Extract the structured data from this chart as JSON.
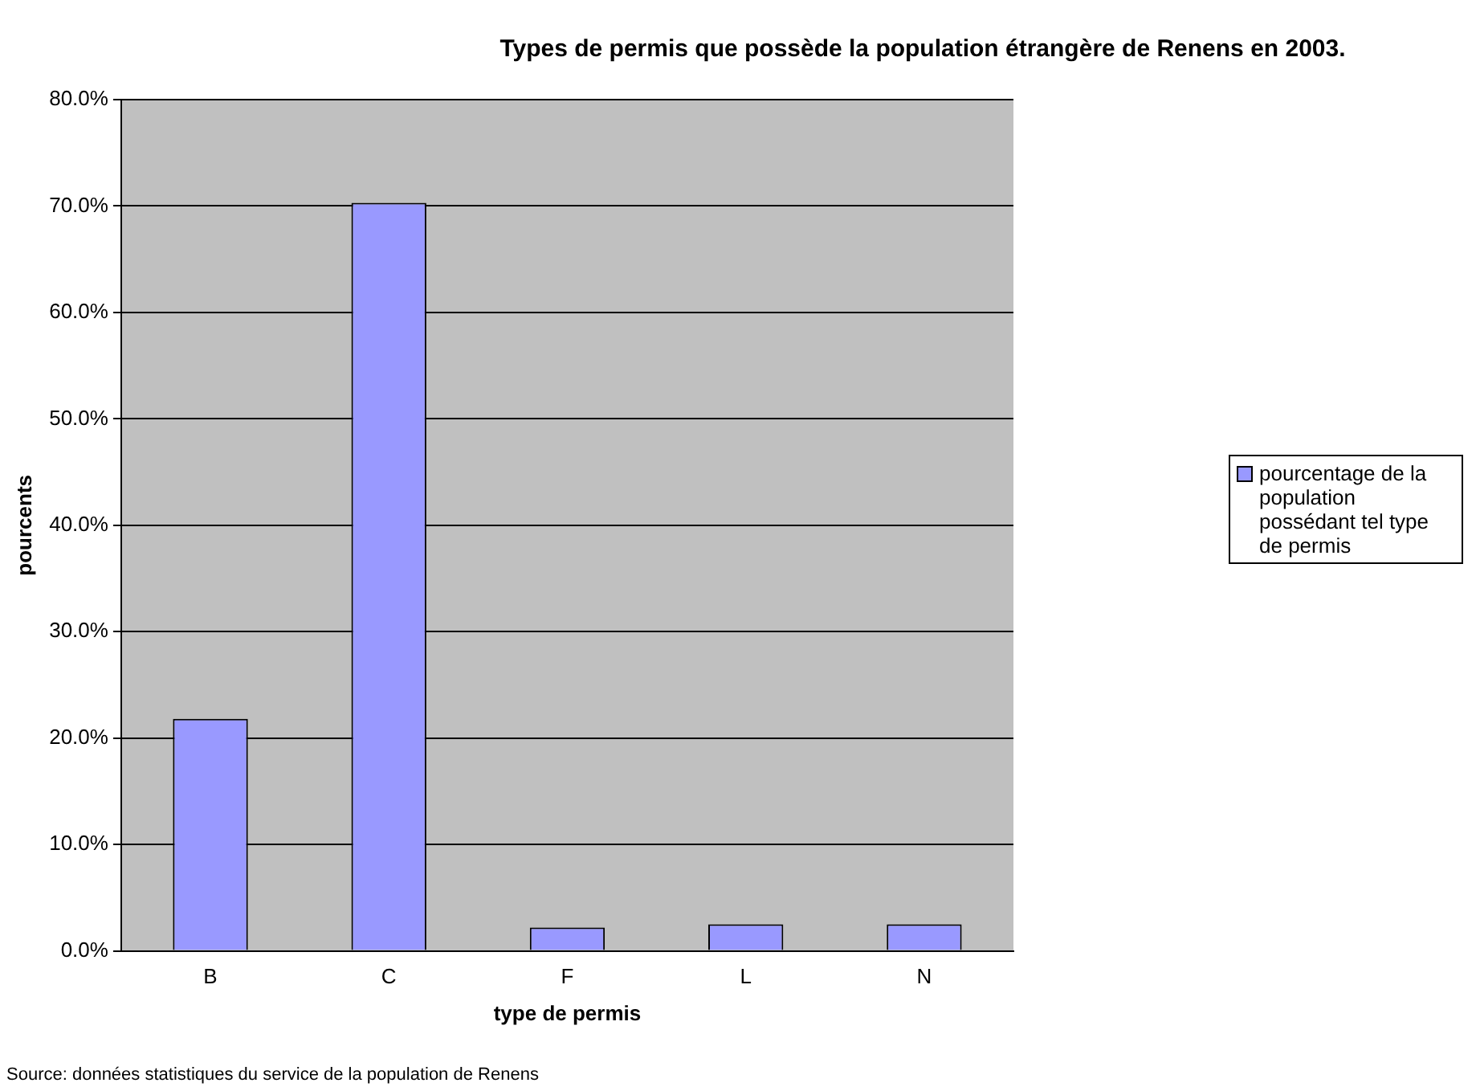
{
  "chart_data": {
    "type": "bar",
    "title": "Types de permis que possède la population étrangère de Renens en 2003.",
    "xlabel": "type de permis",
    "ylabel": "pourcents",
    "categories": [
      "B",
      "C",
      "F",
      "L",
      "N"
    ],
    "series": [
      {
        "name": "pourcentage de la population possédant tel type de permis",
        "color": "#9999ff",
        "values": [
          21.8,
          70.3,
          2.2,
          2.5,
          2.5
        ]
      }
    ],
    "ylim": [
      0,
      80
    ],
    "yticks": [
      {
        "value": 0,
        "label": "0.0%"
      },
      {
        "value": 10,
        "label": "10.0%"
      },
      {
        "value": 20,
        "label": "20.0%"
      },
      {
        "value": 30,
        "label": "30.0%"
      },
      {
        "value": 40,
        "label": "40.0%"
      },
      {
        "value": 50,
        "label": "50.0%"
      },
      {
        "value": 60,
        "label": "60.0%"
      },
      {
        "value": 70,
        "label": "70.0%"
      },
      {
        "value": 80,
        "label": "80.0%"
      }
    ],
    "grid": "y",
    "legend": "right",
    "annotations": [
      "Source: données statistiques du service de la population de Renens"
    ]
  }
}
